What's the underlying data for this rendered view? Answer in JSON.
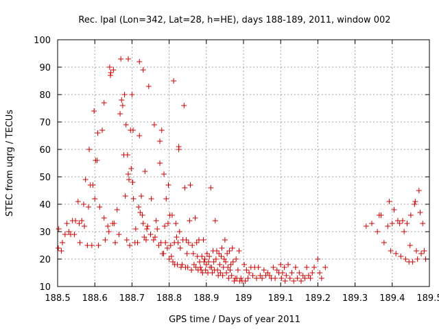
{
  "chart_data": {
    "type": "scatter",
    "title": "Rec. lpal (Lon=342, Lat=28, h=HE), days 188-189, 2011, window 002",
    "xlabel": "GPS time / Days of year 2011",
    "ylabel": "STEC from uqrg / TECUs",
    "xlim": [
      188.5,
      189.5
    ],
    "ylim": [
      10,
      100
    ],
    "xticks": [
      188.5,
      188.6,
      188.7,
      188.8,
      188.9,
      189,
      189.1,
      189.2,
      189.3,
      189.4,
      189.5
    ],
    "xtick_labels": [
      "188.5",
      "188.6",
      "188.7",
      "188.8",
      "188.9",
      "189",
      "189.1",
      "189.2",
      "189.3",
      "189.4",
      "189.5"
    ],
    "yticks": [
      10,
      20,
      30,
      40,
      50,
      60,
      70,
      80,
      90,
      100
    ],
    "ytick_labels": [
      "10",
      "20",
      "30",
      "40",
      "50",
      "60",
      "70",
      "80",
      "90",
      "100"
    ],
    "grid": true,
    "marker": "plus",
    "color": "#cc0000",
    "points": [
      [
        188.502,
        24
      ],
      [
        188.51,
        23
      ],
      [
        188.503,
        31
      ],
      [
        188.513,
        26
      ],
      [
        188.52,
        29
      ],
      [
        188.525,
        33
      ],
      [
        188.53,
        30
      ],
      [
        188.535,
        29
      ],
      [
        188.54,
        34
      ],
      [
        188.545,
        29
      ],
      [
        188.548,
        34
      ],
      [
        188.555,
        41
      ],
      [
        188.56,
        26
      ],
      [
        188.558,
        33
      ],
      [
        188.565,
        34
      ],
      [
        188.57,
        40
      ],
      [
        188.572,
        32
      ],
      [
        188.575,
        49
      ],
      [
        188.58,
        25
      ],
      [
        188.583,
        39
      ],
      [
        188.585,
        60
      ],
      [
        188.588,
        47
      ],
      [
        188.592,
        25
      ],
      [
        188.595,
        47
      ],
      [
        188.598,
        74
      ],
      [
        188.6,
        42
      ],
      [
        188.602,
        56
      ],
      [
        188.606,
        56
      ],
      [
        188.608,
        66
      ],
      [
        188.61,
        25
      ],
      [
        188.613,
        39
      ],
      [
        188.62,
        67
      ],
      [
        188.625,
        77
      ],
      [
        188.625,
        35
      ],
      [
        188.628,
        27
      ],
      [
        188.635,
        32
      ],
      [
        188.638,
        30
      ],
      [
        188.64,
        90
      ],
      [
        188.642,
        87
      ],
      [
        188.643,
        88
      ],
      [
        188.648,
        33
      ],
      [
        188.65,
        89
      ],
      [
        188.652,
        33
      ],
      [
        188.655,
        26
      ],
      [
        188.66,
        38
      ],
      [
        188.665,
        29
      ],
      [
        188.668,
        73
      ],
      [
        188.67,
        93
      ],
      [
        188.672,
        78
      ],
      [
        188.675,
        76
      ],
      [
        188.678,
        58
      ],
      [
        188.68,
        80
      ],
      [
        188.682,
        43
      ],
      [
        188.684,
        69
      ],
      [
        188.686,
        27
      ],
      [
        188.688,
        58
      ],
      [
        188.69,
        93
      ],
      [
        188.69,
        51
      ],
      [
        188.692,
        49
      ],
      [
        188.694,
        25
      ],
      [
        188.696,
        67
      ],
      [
        188.698,
        53
      ],
      [
        188.7,
        80
      ],
      [
        188.702,
        48
      ],
      [
        188.703,
        67
      ],
      [
        188.704,
        42
      ],
      [
        188.708,
        26
      ],
      [
        188.71,
        31
      ],
      [
        188.715,
        26
      ],
      [
        188.718,
        39
      ],
      [
        188.72,
        92
      ],
      [
        188.72,
        65
      ],
      [
        188.722,
        37
      ],
      [
        188.725,
        43
      ],
      [
        188.728,
        36
      ],
      [
        188.73,
        89
      ],
      [
        188.73,
        33
      ],
      [
        188.733,
        28
      ],
      [
        188.735,
        52
      ],
      [
        188.738,
        27
      ],
      [
        188.74,
        31
      ],
      [
        188.742,
        32
      ],
      [
        188.745,
        83
      ],
      [
        188.75,
        29
      ],
      [
        188.752,
        42
      ],
      [
        188.758,
        27
      ],
      [
        188.76,
        69
      ],
      [
        188.762,
        28
      ],
      [
        188.765,
        34
      ],
      [
        188.768,
        31
      ],
      [
        188.772,
        25
      ],
      [
        188.775,
        55
      ],
      [
        188.775,
        63
      ],
      [
        188.778,
        26
      ],
      [
        188.78,
        67
      ],
      [
        188.782,
        22
      ],
      [
        188.785,
        22
      ],
      [
        188.786,
        51
      ],
      [
        188.788,
        32
      ],
      [
        188.79,
        26
      ],
      [
        188.792,
        42
      ],
      [
        188.795,
        24
      ],
      [
        188.797,
        33
      ],
      [
        188.798,
        47
      ],
      [
        188.8,
        20
      ],
      [
        188.802,
        36
      ],
      [
        188.804,
        25
      ],
      [
        188.806,
        21
      ],
      [
        188.808,
        36
      ],
      [
        188.81,
        19
      ],
      [
        188.812,
        85
      ],
      [
        188.814,
        26
      ],
      [
        188.815,
        18
      ],
      [
        188.818,
        33
      ],
      [
        188.82,
        28
      ],
      [
        188.822,
        18
      ],
      [
        188.824,
        26
      ],
      [
        188.826,
        60
      ],
      [
        188.826,
        61
      ],
      [
        188.828,
        30
      ],
      [
        188.83,
        24
      ],
      [
        188.832,
        17
      ],
      [
        188.835,
        18
      ],
      [
        188.837,
        27
      ],
      [
        188.84,
        76
      ],
      [
        188.842,
        46
      ],
      [
        188.844,
        17
      ],
      [
        188.846,
        27
      ],
      [
        188.848,
        22
      ],
      [
        188.85,
        17
      ],
      [
        188.852,
        26
      ],
      [
        188.855,
        34
      ],
      [
        188.857,
        47
      ],
      [
        188.86,
        16
      ],
      [
        188.862,
        25
      ],
      [
        188.865,
        22
      ],
      [
        188.867,
        18
      ],
      [
        188.87,
        35
      ],
      [
        188.872,
        17
      ],
      [
        188.874,
        26
      ],
      [
        188.876,
        21
      ],
      [
        188.878,
        16
      ],
      [
        188.88,
        27
      ],
      [
        188.882,
        19
      ],
      [
        188.884,
        17
      ],
      [
        188.886,
        16
      ],
      [
        188.888,
        21
      ],
      [
        188.89,
        15
      ],
      [
        188.892,
        27
      ],
      [
        188.894,
        19
      ],
      [
        188.896,
        20
      ],
      [
        188.898,
        16
      ],
      [
        188.9,
        18
      ],
      [
        188.902,
        22
      ],
      [
        188.904,
        15
      ],
      [
        188.906,
        19
      ],
      [
        188.908,
        21
      ],
      [
        188.91,
        17
      ],
      [
        188.912,
        46
      ],
      [
        188.914,
        17
      ],
      [
        188.916,
        15
      ],
      [
        188.918,
        23
      ],
      [
        188.92,
        19
      ],
      [
        188.922,
        16
      ],
      [
        188.924,
        34
      ],
      [
        188.926,
        20
      ],
      [
        188.928,
        23
      ],
      [
        188.93,
        16
      ],
      [
        188.932,
        14
      ],
      [
        188.934,
        22
      ],
      [
        188.936,
        18
      ],
      [
        188.938,
        15
      ],
      [
        188.94,
        21
      ],
      [
        188.942,
        24
      ],
      [
        188.944,
        14
      ],
      [
        188.946,
        17
      ],
      [
        188.948,
        20
      ],
      [
        188.95,
        27
      ],
      [
        188.952,
        19
      ],
      [
        188.954,
        15
      ],
      [
        188.956,
        22
      ],
      [
        188.958,
        17
      ],
      [
        188.96,
        13
      ],
      [
        188.962,
        23
      ],
      [
        188.964,
        16
      ],
      [
        188.966,
        18
      ],
      [
        188.968,
        14
      ],
      [
        188.97,
        24
      ],
      [
        188.972,
        19
      ],
      [
        188.975,
        12
      ],
      [
        188.978,
        13
      ],
      [
        188.98,
        20
      ],
      [
        188.982,
        13
      ],
      [
        188.985,
        16
      ],
      [
        188.988,
        23
      ],
      [
        188.99,
        12
      ],
      [
        188.993,
        13
      ],
      [
        188.996,
        12
      ],
      [
        189.002,
        18
      ],
      [
        189.005,
        12
      ],
      [
        189.008,
        16
      ],
      [
        189.012,
        13
      ],
      [
        189.015,
        15
      ],
      [
        189.02,
        17
      ],
      [
        189.025,
        14
      ],
      [
        189.03,
        17
      ],
      [
        189.035,
        13
      ],
      [
        189.04,
        17
      ],
      [
        189.045,
        14
      ],
      [
        189.05,
        13
      ],
      [
        189.055,
        16
      ],
      [
        189.06,
        14
      ],
      [
        189.065,
        15
      ],
      [
        189.07,
        14
      ],
      [
        189.075,
        13
      ],
      [
        189.08,
        17
      ],
      [
        189.085,
        13
      ],
      [
        189.09,
        16
      ],
      [
        189.095,
        15
      ],
      [
        189.1,
        18
      ],
      [
        189.102,
        13
      ],
      [
        189.105,
        15
      ],
      [
        189.11,
        17
      ],
      [
        189.112,
        12
      ],
      [
        189.115,
        14
      ],
      [
        189.12,
        18
      ],
      [
        189.125,
        13
      ],
      [
        189.13,
        15
      ],
      [
        189.135,
        12
      ],
      [
        189.14,
        17
      ],
      [
        189.145,
        13
      ],
      [
        189.15,
        15
      ],
      [
        189.155,
        12
      ],
      [
        189.16,
        14
      ],
      [
        189.165,
        13
      ],
      [
        189.17,
        17
      ],
      [
        189.175,
        14
      ],
      [
        189.18,
        13
      ],
      [
        189.185,
        15
      ],
      [
        189.19,
        17
      ],
      [
        189.2,
        20
      ],
      [
        189.205,
        15
      ],
      [
        189.21,
        13
      ],
      [
        189.22,
        17
      ],
      [
        189.33,
        32
      ],
      [
        189.345,
        33
      ],
      [
        189.36,
        30
      ],
      [
        189.365,
        36
      ],
      [
        189.37,
        36
      ],
      [
        189.378,
        26
      ],
      [
        189.388,
        32
      ],
      [
        189.392,
        41
      ],
      [
        189.396,
        23
      ],
      [
        189.4,
        33
      ],
      [
        189.405,
        38
      ],
      [
        189.41,
        22
      ],
      [
        189.415,
        34
      ],
      [
        189.42,
        33
      ],
      [
        189.423,
        21
      ],
      [
        189.428,
        34
      ],
      [
        189.432,
        30
      ],
      [
        189.436,
        20
      ],
      [
        189.44,
        33
      ],
      [
        189.445,
        19
      ],
      [
        189.448,
        25
      ],
      [
        189.45,
        36
      ],
      [
        189.455,
        19
      ],
      [
        189.46,
        40
      ],
      [
        189.462,
        41
      ],
      [
        189.465,
        23
      ],
      [
        189.468,
        20
      ],
      [
        189.472,
        45
      ],
      [
        189.475,
        37
      ],
      [
        189.478,
        22
      ],
      [
        189.482,
        33
      ],
      [
        189.486,
        23
      ],
      [
        189.49,
        20
      ]
    ]
  }
}
